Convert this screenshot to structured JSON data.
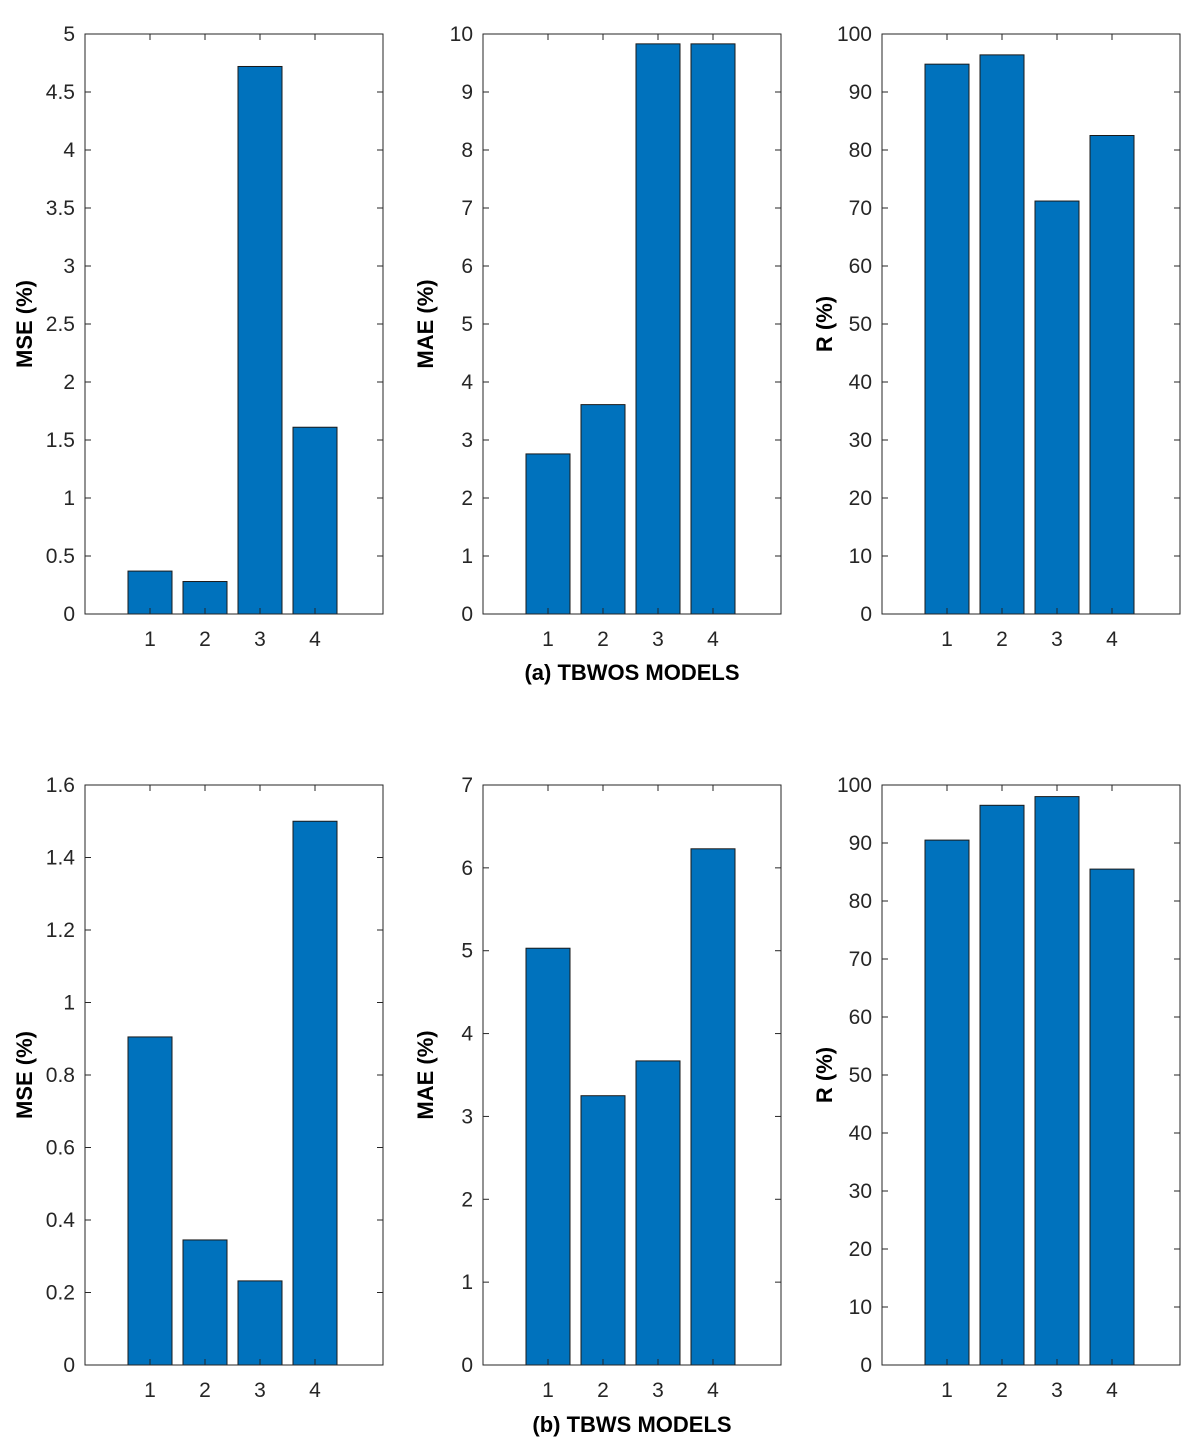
{
  "chart_data": [
    {
      "type": "bar",
      "group": "a",
      "categories": [
        "1",
        "2",
        "3",
        "4"
      ],
      "values": [
        0.37,
        0.28,
        4.72,
        1.61
      ],
      "ylabel": "MSE (%)",
      "ylim": [
        0,
        5
      ],
      "yticks": [
        0,
        0.5,
        1,
        1.5,
        2,
        2.5,
        3,
        3.5,
        4,
        4.5,
        5
      ],
      "ytick_labels": [
        "0",
        "0.5",
        "1",
        "1.5",
        "2",
        "2.5",
        "3",
        "3.5",
        "4",
        "4.5",
        "5"
      ]
    },
    {
      "type": "bar",
      "group": "a",
      "categories": [
        "1",
        "2",
        "3",
        "4"
      ],
      "values": [
        2.76,
        3.61,
        9.83,
        9.83
      ],
      "ylabel": "MAE (%)",
      "ylim": [
        0,
        10
      ],
      "yticks": [
        0,
        1,
        2,
        3,
        4,
        5,
        6,
        7,
        8,
        9,
        10
      ],
      "ytick_labels": [
        "0",
        "1",
        "2",
        "3",
        "4",
        "5",
        "6",
        "7",
        "8",
        "9",
        "10"
      ]
    },
    {
      "type": "bar",
      "group": "a",
      "categories": [
        "1",
        "2",
        "3",
        "4"
      ],
      "values": [
        94.8,
        96.4,
        71.2,
        82.5
      ],
      "ylabel": "R (%)",
      "ylim": [
        0,
        100
      ],
      "yticks": [
        0,
        10,
        20,
        30,
        40,
        50,
        60,
        70,
        80,
        90,
        100
      ],
      "ytick_labels": [
        "0",
        "10",
        "20",
        "30",
        "40",
        "50",
        "60",
        "70",
        "80",
        "90",
        "100"
      ]
    },
    {
      "type": "bar",
      "group": "b",
      "categories": [
        "1",
        "2",
        "3",
        "4"
      ],
      "values": [
        0.905,
        0.345,
        0.232,
        1.5
      ],
      "ylabel": "MSE (%)",
      "ylim": [
        0,
        1.6
      ],
      "yticks": [
        0,
        0.2,
        0.4,
        0.6,
        0.8,
        1,
        1.2,
        1.4,
        1.6
      ],
      "ytick_labels": [
        "0",
        "0.2",
        "0.4",
        "0.6",
        "0.8",
        "1",
        "1.2",
        "1.4",
        "1.6"
      ]
    },
    {
      "type": "bar",
      "group": "b",
      "categories": [
        "1",
        "2",
        "3",
        "4"
      ],
      "values": [
        5.03,
        3.25,
        3.67,
        6.23
      ],
      "ylabel": "MAE (%)",
      "ylim": [
        0,
        7
      ],
      "yticks": [
        0,
        1,
        2,
        3,
        4,
        5,
        6,
        7
      ],
      "ytick_labels": [
        "0",
        "1",
        "2",
        "3",
        "4",
        "5",
        "6",
        "7"
      ]
    },
    {
      "type": "bar",
      "group": "b",
      "categories": [
        "1",
        "2",
        "3",
        "4"
      ],
      "values": [
        90.5,
        96.5,
        98.0,
        85.5
      ],
      "ylabel": "R (%)",
      "ylim": [
        0,
        100
      ],
      "yticks": [
        0,
        10,
        20,
        30,
        40,
        50,
        60,
        70,
        80,
        90,
        100
      ],
      "ytick_labels": [
        "0",
        "10",
        "20",
        "30",
        "40",
        "50",
        "60",
        "70",
        "80",
        "90",
        "100"
      ]
    }
  ],
  "captions": {
    "a": "(a) TBWOS MODELS",
    "b": "(b) TBWS MODELS"
  },
  "colors": {
    "bar": "#0072BD",
    "edge": "#1a1a1a",
    "axis": "#262626"
  }
}
